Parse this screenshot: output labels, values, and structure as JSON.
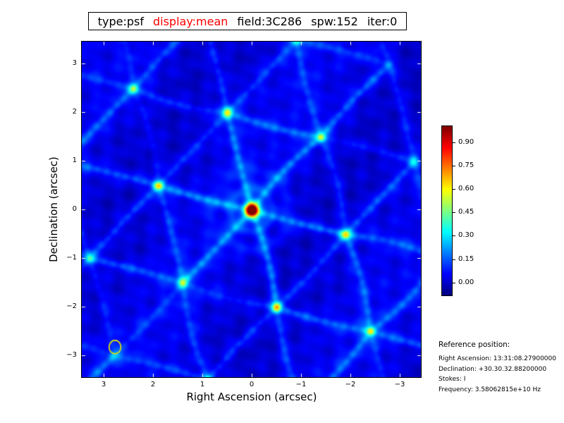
{
  "title": {
    "type_field": "type:psf",
    "display_field": "display:mean",
    "field_field": "field:3C286",
    "spw_field": "spw:152",
    "iter_field": "iter:0",
    "display_color": "#ff0000"
  },
  "chart_data": {
    "type": "heatmap",
    "title": "type:psf display:mean field:3C286 spw:152 iter:0",
    "xlabel": "Right Ascension (arcsec)",
    "ylabel": "Declination (arcsec)",
    "x_tick_labels": [
      "3",
      "2",
      "1",
      "0",
      "−1",
      "−2",
      "−3"
    ],
    "x_tick_values": [
      3,
      2,
      1,
      0,
      -1,
      -2,
      -3
    ],
    "y_tick_labels": [
      "3",
      "2",
      "1",
      "0",
      "−1",
      "−2",
      "−3"
    ],
    "y_tick_values": [
      3,
      2,
      1,
      0,
      -1,
      -2,
      -3
    ],
    "x_range": [
      3.45,
      -3.45
    ],
    "y_range": [
      -3.45,
      3.45
    ],
    "grid": false,
    "colormap": "jet",
    "colorbar_tick_labels": [
      "0.90",
      "0.75",
      "0.60",
      "0.45",
      "0.30",
      "0.15",
      "0.00"
    ],
    "colorbar_tick_values": [
      0.9,
      0.75,
      0.6,
      0.45,
      0.3,
      0.15,
      0.0
    ],
    "colorbar_range": [
      -0.082,
      1.004
    ],
    "peaks": [
      {
        "x": 0.0,
        "y": 0.0,
        "amplitude": 1.0
      },
      {
        "x": 1.9,
        "y": 0.5,
        "amplitude": 0.28
      },
      {
        "x": -1.9,
        "y": -0.5,
        "amplitude": 0.28
      },
      {
        "x": 0.5,
        "y": 2.0,
        "amplitude": 0.27
      },
      {
        "x": -0.5,
        "y": -2.0,
        "amplitude": 0.27
      },
      {
        "x": 1.4,
        "y": -1.5,
        "amplitude": 0.16
      },
      {
        "x": -1.4,
        "y": 1.5,
        "amplitude": 0.16
      },
      {
        "x": 2.4,
        "y": 2.5,
        "amplitude": 0.17
      },
      {
        "x": -2.4,
        "y": -2.5,
        "amplitude": 0.17
      },
      {
        "x": -0.9,
        "y": 3.5,
        "amplitude": 0.18
      },
      {
        "x": 0.9,
        "y": -3.5,
        "amplitude": 0.18
      },
      {
        "x": 3.3,
        "y": -1.0,
        "amplitude": 0.15
      },
      {
        "x": -3.3,
        "y": 1.0,
        "amplitude": 0.15
      }
    ],
    "beam_marker": {
      "x": 2.77,
      "y": -2.83,
      "radius_arcsec": 0.12,
      "color": "#e0e000"
    }
  },
  "reference": {
    "heading": "Reference position:",
    "lines": [
      "Right Ascension: 13:31:08.27900000",
      "Declination: +30.30.32.88200000",
      "Stokes: I",
      "Frequency: 3.58062815e+10 Hz"
    ]
  }
}
